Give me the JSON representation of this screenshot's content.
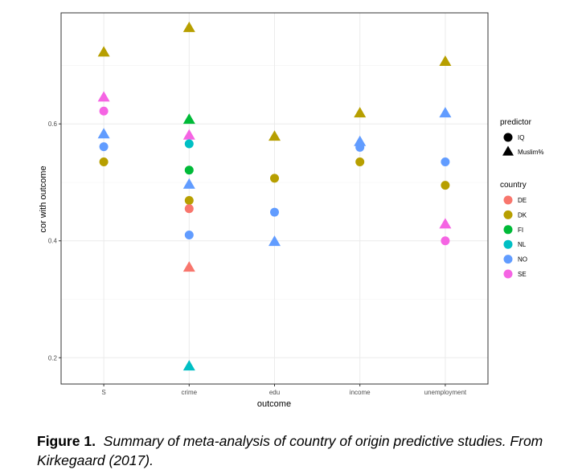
{
  "chart_data": {
    "type": "scatter",
    "xlabel": "outcome",
    "ylabel": "cor with outcome",
    "categories": [
      "S",
      "crime",
      "edu",
      "income",
      "unemployment"
    ],
    "ylim": [
      0.155,
      0.79
    ],
    "yticks": [
      0.2,
      0.4,
      0.6
    ],
    "ytick_labels": [
      "0.2",
      "0.4",
      "0.6"
    ],
    "grid": true,
    "legend_shape": {
      "title": "predictor",
      "entries": [
        {
          "label": "IQ",
          "shape": "circle"
        },
        {
          "label": "Muslim%",
          "shape": "triangle"
        }
      ]
    },
    "legend_color": {
      "title": "country",
      "entries": [
        {
          "label": "DE",
          "color": "#F8766D"
        },
        {
          "label": "DK",
          "color": "#B79F00"
        },
        {
          "label": "FI",
          "color": "#00BA38"
        },
        {
          "label": "NL",
          "color": "#00BFC4"
        },
        {
          "label": "NO",
          "color": "#619CFF"
        },
        {
          "label": "SE",
          "color": "#F564E3"
        }
      ]
    },
    "points": [
      {
        "outcome": "S",
        "country": "DK",
        "predictor": "Muslim%",
        "value": 0.722
      },
      {
        "outcome": "S",
        "country": "SE",
        "predictor": "Muslim%",
        "value": 0.645
      },
      {
        "outcome": "S",
        "country": "SE",
        "predictor": "IQ",
        "value": 0.622
      },
      {
        "outcome": "S",
        "country": "NO",
        "predictor": "Muslim%",
        "value": 0.582
      },
      {
        "outcome": "S",
        "country": "NO",
        "predictor": "IQ",
        "value": 0.561
      },
      {
        "outcome": "S",
        "country": "DK",
        "predictor": "IQ",
        "value": 0.535
      },
      {
        "outcome": "crime",
        "country": "DK",
        "predictor": "Muslim%",
        "value": 0.764
      },
      {
        "outcome": "crime",
        "country": "FI",
        "predictor": "Muslim%",
        "value": 0.607
      },
      {
        "outcome": "crime",
        "country": "SE",
        "predictor": "Muslim%",
        "value": 0.58
      },
      {
        "outcome": "crime",
        "country": "NL",
        "predictor": "IQ",
        "value": 0.566
      },
      {
        "outcome": "crime",
        "country": "FI",
        "predictor": "IQ",
        "value": 0.521
      },
      {
        "outcome": "crime",
        "country": "NO",
        "predictor": "Muslim%",
        "value": 0.496
      },
      {
        "outcome": "crime",
        "country": "DK",
        "predictor": "IQ",
        "value": 0.469
      },
      {
        "outcome": "crime",
        "country": "DE",
        "predictor": "IQ",
        "value": 0.455
      },
      {
        "outcome": "crime",
        "country": "NO",
        "predictor": "IQ",
        "value": 0.41
      },
      {
        "outcome": "crime",
        "country": "DE",
        "predictor": "Muslim%",
        "value": 0.354
      },
      {
        "outcome": "crime",
        "country": "NL",
        "predictor": "Muslim%",
        "value": 0.185
      },
      {
        "outcome": "edu",
        "country": "DK",
        "predictor": "Muslim%",
        "value": 0.578
      },
      {
        "outcome": "edu",
        "country": "DK",
        "predictor": "IQ",
        "value": 0.507
      },
      {
        "outcome": "edu",
        "country": "NO",
        "predictor": "IQ",
        "value": 0.449
      },
      {
        "outcome": "edu",
        "country": "NO",
        "predictor": "Muslim%",
        "value": 0.398
      },
      {
        "outcome": "income",
        "country": "DK",
        "predictor": "Muslim%",
        "value": 0.618
      },
      {
        "outcome": "income",
        "country": "NO",
        "predictor": "Muslim%",
        "value": 0.569
      },
      {
        "outcome": "income",
        "country": "NO",
        "predictor": "IQ",
        "value": 0.56
      },
      {
        "outcome": "income",
        "country": "DK",
        "predictor": "IQ",
        "value": 0.535
      },
      {
        "outcome": "unemployment",
        "country": "DK",
        "predictor": "Muslim%",
        "value": 0.706
      },
      {
        "outcome": "unemployment",
        "country": "NO",
        "predictor": "Muslim%",
        "value": 0.618
      },
      {
        "outcome": "unemployment",
        "country": "NO",
        "predictor": "IQ",
        "value": 0.535
      },
      {
        "outcome": "unemployment",
        "country": "DK",
        "predictor": "IQ",
        "value": 0.495
      },
      {
        "outcome": "unemployment",
        "country": "SE",
        "predictor": "Muslim%",
        "value": 0.428
      },
      {
        "outcome": "unemployment",
        "country": "SE",
        "predictor": "IQ",
        "value": 0.4
      }
    ]
  },
  "caption": {
    "label": "Figure 1.",
    "text": "Summary of meta-analysis of country of origin predictive studies. From Kirkegaard (2017)."
  }
}
